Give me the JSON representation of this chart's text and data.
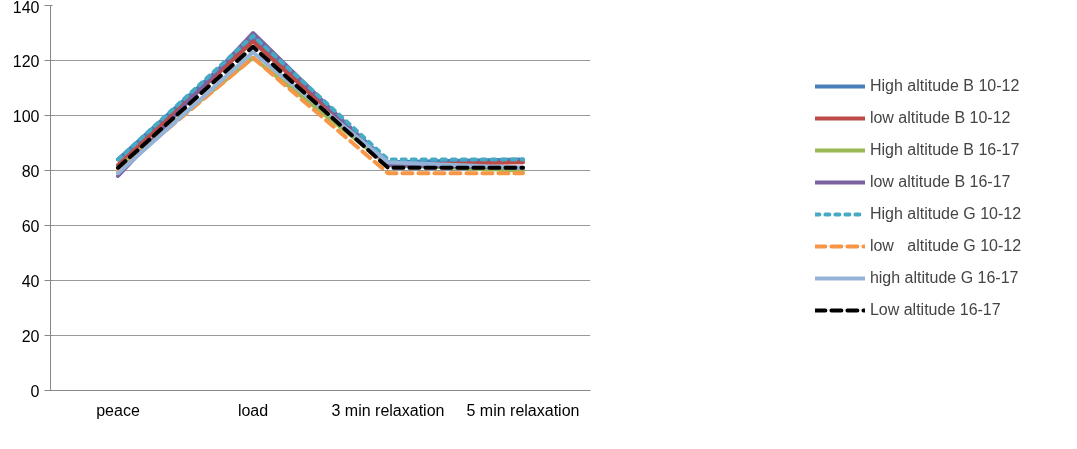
{
  "chart_data": {
    "type": "line",
    "categories": [
      "peace",
      "load",
      "3 min relaxation",
      "5 min relaxation"
    ],
    "ylim": [
      0,
      140
    ],
    "yticks": [
      0,
      20,
      40,
      60,
      80,
      100,
      120,
      140
    ],
    "grid": "y",
    "legend": "right",
    "marker": "none",
    "series": [
      {
        "name": "High altitude B 10-12",
        "color": "#4a7ebb",
        "values": [
          84,
          128,
          83,
          84
        ],
        "line_style": "solid"
      },
      {
        "name": "low altitude B 10-12",
        "color": "#be4b48",
        "values": [
          82,
          127,
          82,
          83
        ],
        "line_style": "solid"
      },
      {
        "name": "High altitude B 16-17",
        "color": "#98b954",
        "values": [
          81,
          121,
          82,
          80
        ],
        "line_style": "solid"
      },
      {
        "name": "low altitude B 16-17",
        "color": "#7d60a0",
        "values": [
          78,
          130,
          82,
          81
        ],
        "line_style": "solid"
      },
      {
        "name": "High altitude G 10-12",
        "color": "#46aac5",
        "values": [
          84,
          129,
          84,
          84
        ],
        "line_style": "dotted"
      },
      {
        "name": "low   altitude G 10-12",
        "color": "#f79646",
        "values": [
          80,
          121,
          79,
          79
        ],
        "line_style": "dashed"
      },
      {
        "name": "high altitude G 16-17",
        "color": "#95b3d7",
        "values": [
          79,
          123,
          83,
          81
        ],
        "line_style": "solid"
      },
      {
        "name": "Low altitude 16-17",
        "color": "#000000",
        "values": [
          81,
          125,
          81,
          81
        ],
        "line_style": "dashed"
      }
    ]
  }
}
